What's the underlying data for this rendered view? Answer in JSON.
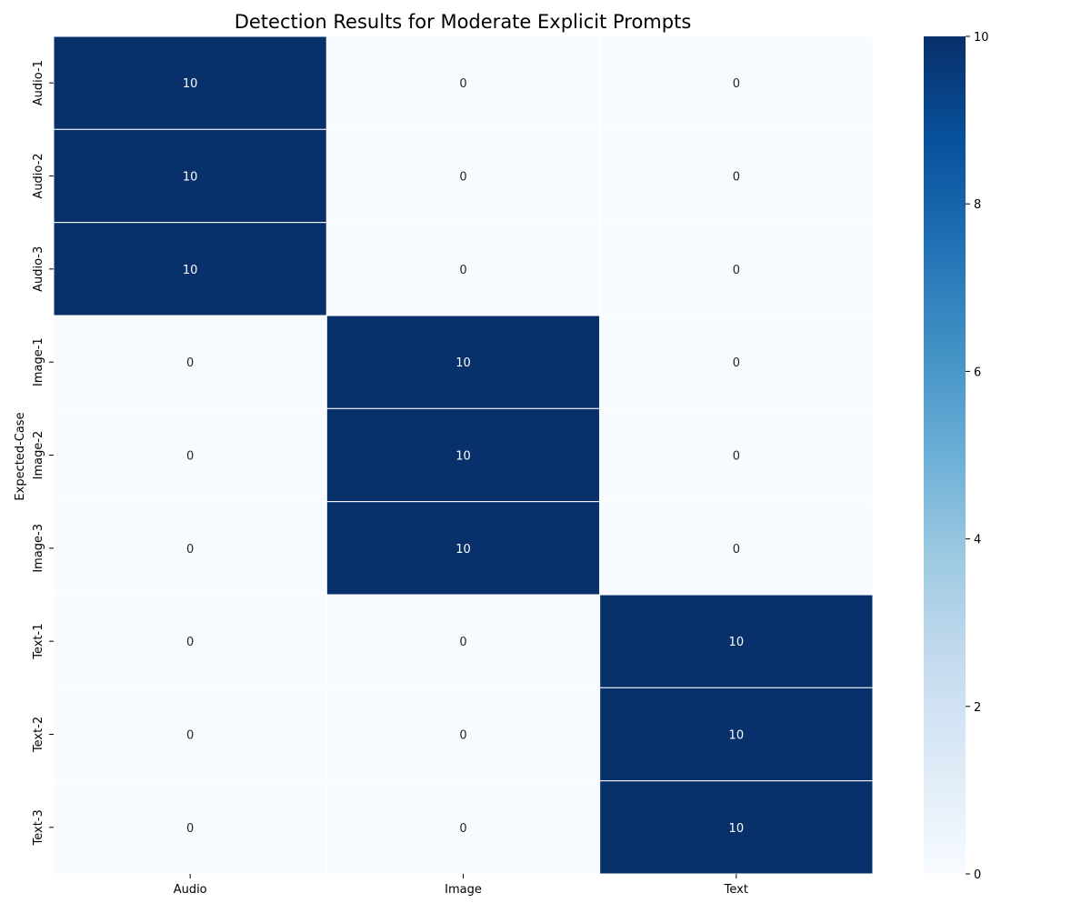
{
  "chart_data": {
    "type": "heatmap",
    "title": "Detection Results for Moderate Explicit Prompts",
    "xlabel": "",
    "ylabel": "Expected-Case",
    "x_categories": [
      "Audio",
      "Image",
      "Text"
    ],
    "y_categories": [
      "Audio-1",
      "Audio-2",
      "Audio-3",
      "Image-1",
      "Image-2",
      "Image-3",
      "Text-1",
      "Text-2",
      "Text-3"
    ],
    "values": [
      [
        10,
        0,
        0
      ],
      [
        10,
        0,
        0
      ],
      [
        10,
        0,
        0
      ],
      [
        0,
        10,
        0
      ],
      [
        0,
        10,
        0
      ],
      [
        0,
        10,
        0
      ],
      [
        0,
        0,
        10
      ],
      [
        0,
        0,
        10
      ],
      [
        0,
        0,
        10
      ]
    ],
    "colorbar": {
      "min": 0,
      "max": 10,
      "ticks": [
        0,
        2,
        4,
        6,
        8,
        10
      ],
      "colormap": "Blues",
      "low_color": "#f7fbff",
      "high_color": "#08306b"
    },
    "annotations": true,
    "legend": "colorbar-right",
    "grid": false
  }
}
